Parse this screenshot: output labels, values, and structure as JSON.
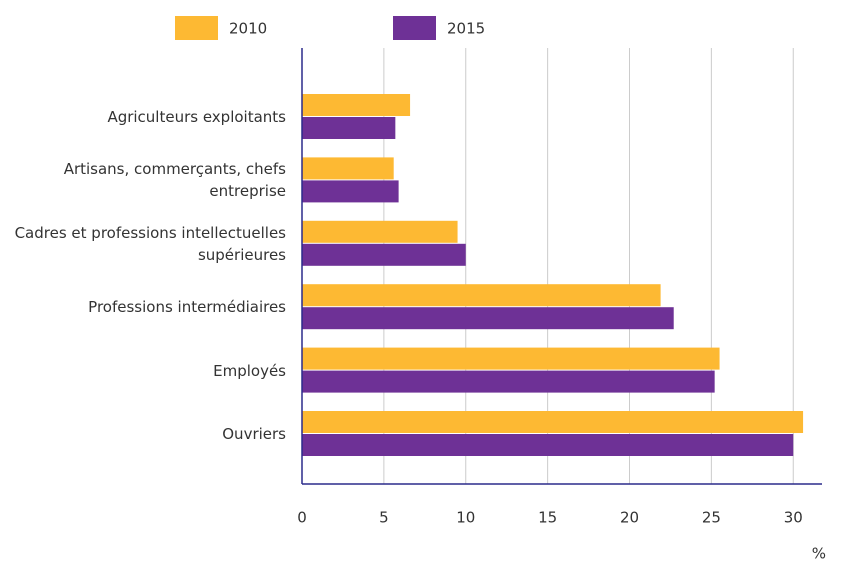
{
  "chart_data": {
    "type": "hbar",
    "categories": [
      "Agriculteurs exploitants",
      "Artisans, commerçants, chefs entreprise",
      "Cadres et professions intellectuelles supérieures",
      "Professions intermédiaires",
      "Employés",
      "Ouvriers"
    ],
    "series": [
      {
        "name": "2010",
        "color": "#fdb933",
        "values": [
          6.6,
          5.6,
          9.5,
          21.9,
          25.5,
          30.6
        ]
      },
      {
        "name": "2015",
        "color": "#6e3196",
        "values": [
          5.7,
          5.9,
          10.0,
          22.7,
          25.2,
          30.0
        ]
      }
    ],
    "xlabel": "%",
    "xlim": [
      0,
      32
    ],
    "xticks": [
      0,
      5,
      10,
      15,
      20,
      25,
      30
    ],
    "grid": true
  }
}
